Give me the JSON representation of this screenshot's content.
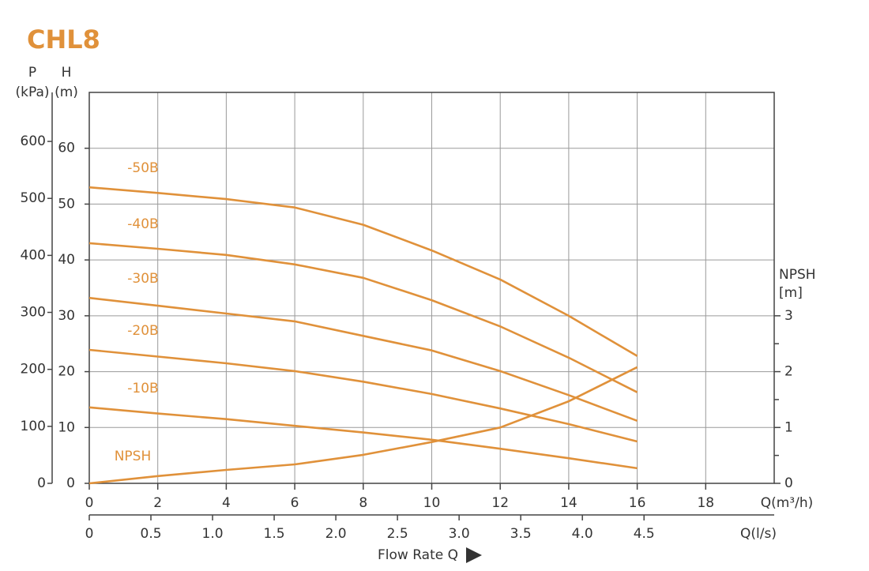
{
  "chart_data": {
    "type": "line",
    "title": "CHL8",
    "x_label": "Q(m³/h)",
    "x2_label": "Q(l/s)",
    "xlabel": "Flow Rate Q",
    "y_label": [
      "H",
      "(m)"
    ],
    "p_label": [
      "P",
      "(kPa)"
    ],
    "y2_label": [
      "NPSH",
      "[m]"
    ],
    "x": [
      0,
      2,
      4,
      6,
      8,
      10,
      12,
      14,
      16
    ],
    "xlim": [
      0,
      20
    ],
    "xticks": [
      0,
      2,
      4,
      6,
      8,
      10,
      12,
      14,
      16,
      18
    ],
    "x2lim": [
      0,
      5.556
    ],
    "x2ticks": [
      0,
      0.5,
      {
        "value": 1,
        "label": "1.0"
      },
      1.5,
      {
        "value": 2,
        "label": "2.0"
      },
      2.5,
      {
        "value": 3,
        "label": "3.0"
      },
      3.5,
      {
        "value": 4,
        "label": "4.0"
      },
      4.5
    ],
    "ylim": [
      0,
      70
    ],
    "yticks": [
      0,
      10,
      20,
      30,
      40,
      50,
      60
    ],
    "plim": [
      0,
      686
    ],
    "pticks": [
      0,
      100,
      200,
      300,
      400,
      500,
      600
    ],
    "y2lim": [
      0,
      7
    ],
    "y2ticks": [
      0,
      1,
      2,
      3
    ],
    "y2minor_ticks": [
      0.5,
      1.5,
      2.5
    ],
    "grid": true,
    "series": [
      {
        "name": "-50B",
        "color": "#e0913a",
        "values": [
          53.0,
          52.0,
          50.9,
          49.4,
          46.3,
          41.7,
          36.5,
          30.0,
          22.8
        ]
      },
      {
        "name": "-40B",
        "color": "#e0913a",
        "values": [
          43.0,
          42.0,
          40.9,
          39.2,
          36.8,
          32.8,
          28.1,
          22.5,
          16.3
        ]
      },
      {
        "name": "-30B",
        "color": "#e0913a",
        "values": [
          33.2,
          31.8,
          30.4,
          29.0,
          26.4,
          23.8,
          20.1,
          15.8,
          11.2
        ]
      },
      {
        "name": "-20B",
        "color": "#e0913a",
        "values": [
          23.9,
          22.7,
          21.5,
          20.1,
          18.2,
          16.0,
          13.4,
          10.6,
          7.5
        ]
      },
      {
        "name": "-10B",
        "color": "#e0913a",
        "values": [
          13.6,
          12.5,
          11.5,
          10.3,
          9.1,
          7.8,
          6.2,
          4.5,
          2.7
        ]
      },
      {
        "name": "NPSH",
        "color": "#e0913a",
        "axis": "y2",
        "values": [
          0,
          0.13,
          0.24,
          0.34,
          0.51,
          0.74,
          1.0,
          1.47,
          2.08
        ]
      }
    ]
  }
}
